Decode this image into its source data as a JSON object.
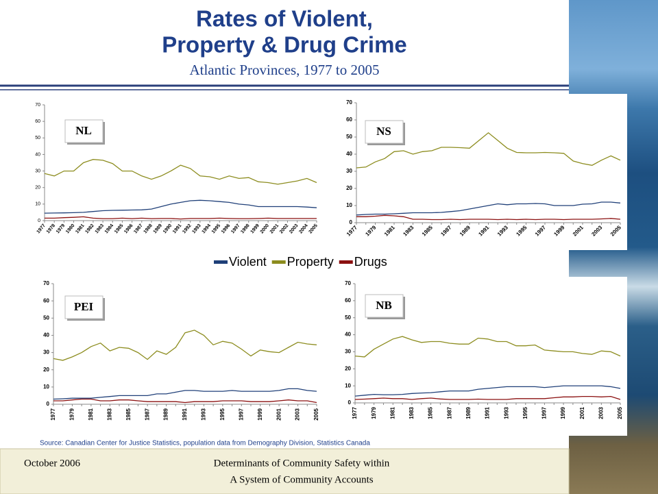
{
  "slide": {
    "title_lines": [
      "Rates of Violent,",
      "Property & Drug Crime"
    ],
    "subtitle": "Atlantic Provinces, 1977 to 2005",
    "source": "Source: Canadian Center for Justice Statistics, population data from Demography Division, Statistics Canada",
    "footer": {
      "date": "October 2006",
      "text_lines": [
        "Determinants of Community Safety within",
        "A System of Community Accounts"
      ]
    }
  },
  "chart_data": [
    {
      "type": "line",
      "title": "NL",
      "categories": [
        "1977",
        "1978",
        "1979",
        "1980",
        "1981",
        "1982",
        "1983",
        "1984",
        "1985",
        "1986",
        "1987",
        "1988",
        "1989",
        "1990",
        "1991",
        "1992",
        "1993",
        "1994",
        "1995",
        "1996",
        "1997",
        "1998",
        "1999",
        "2000",
        "2001",
        "2002",
        "2003",
        "2004",
        "2005"
      ],
      "series": [
        {
          "name": "Violent",
          "color": "#1f3f78",
          "values": [
            4.5,
            4.6,
            4.7,
            4.8,
            5,
            5.5,
            6,
            6.2,
            6.3,
            6.4,
            6.5,
            7,
            8.5,
            10,
            11,
            12,
            12.3,
            12,
            11.5,
            11,
            10,
            9.5,
            8.5,
            8.5,
            8.5,
            8.5,
            8.5,
            8.2,
            7.8
          ]
        },
        {
          "name": "Property",
          "color": "#8c8c1e",
          "values": [
            28.5,
            27,
            30,
            30,
            35,
            37,
            36.5,
            34.5,
            30,
            30,
            27,
            25,
            27,
            30,
            33.5,
            31.5,
            27,
            26.5,
            25,
            27,
            25.5,
            26,
            23.5,
            23,
            22,
            23,
            24,
            25.5,
            23
          ]
        },
        {
          "name": "Drugs",
          "color": "#8b1010",
          "values": [
            1.5,
            1.5,
            1.8,
            2,
            2.3,
            1.5,
            1.2,
            1.2,
            1.5,
            1.2,
            1.5,
            1.2,
            1.3,
            1.3,
            1,
            1.3,
            1.3,
            1.3,
            1.5,
            1.3,
            1.2,
            1.2,
            1.3,
            1.5,
            1.3,
            1.3,
            1.3,
            1.3,
            1.3
          ]
        }
      ],
      "ylim": [
        0,
        70
      ],
      "yticks": [
        0,
        10,
        20,
        30,
        40,
        50,
        60,
        70
      ]
    },
    {
      "type": "line",
      "title": "NS",
      "categories": [
        "1977",
        null,
        "1979",
        null,
        "1981",
        null,
        "1983",
        null,
        "1985",
        null,
        "1987",
        null,
        "1989",
        null,
        "1991",
        null,
        "1993",
        null,
        "1995",
        null,
        "1997",
        null,
        "1999",
        null,
        "2001",
        null,
        "2003",
        null,
        "2005"
      ],
      "series": [
        {
          "color": "#1f3f78",
          "values": [
            4.5,
            4.8,
            5,
            5,
            5.2,
            5.5,
            5.8,
            5.8,
            5.8,
            6,
            6.5,
            7,
            8,
            9,
            10,
            11,
            10.5,
            11,
            11,
            11.2,
            11,
            10,
            10,
            10,
            10.8,
            11,
            12,
            12,
            11.5
          ]
        },
        {
          "color": "#8c8c1e",
          "values": [
            32,
            32.5,
            35.5,
            37.5,
            41.5,
            42,
            40,
            41.5,
            42,
            44,
            44,
            43.8,
            43.5,
            48,
            52.5,
            48,
            43.5,
            41,
            40.8,
            40.8,
            41,
            40.8,
            40.5,
            36,
            34.5,
            33.5,
            36.5,
            39,
            36.5
          ]
        },
        {
          "color": "#8b1010",
          "values": [
            3.5,
            3.5,
            3.8,
            4.3,
            4,
            3.5,
            2,
            2,
            1.8,
            1.8,
            2,
            1.8,
            2,
            2,
            2,
            1.8,
            2,
            1.8,
            2,
            1.8,
            2,
            2,
            1.8,
            2,
            2,
            2,
            2.2,
            2.5,
            2
          ]
        }
      ],
      "ylim": [
        0,
        70
      ],
      "yticks": [
        0,
        10,
        20,
        30,
        40,
        50,
        60,
        70
      ]
    },
    {
      "type": "line",
      "title": "PEI",
      "categories": [
        "1977",
        null,
        "1979",
        null,
        "1981",
        null,
        "1983",
        null,
        "1985",
        null,
        "1987",
        null,
        "1989",
        null,
        "1991",
        null,
        "1993",
        null,
        "1995",
        null,
        "1997",
        null,
        "1999",
        null,
        "2001",
        null,
        "2003",
        null,
        "2005"
      ],
      "series": [
        {
          "color": "#1f3f78",
          "values": [
            3,
            3.2,
            3.5,
            3.5,
            3.5,
            4,
            4.5,
            5,
            5,
            5,
            5,
            6,
            6,
            7,
            8,
            8,
            7.5,
            7.5,
            7.5,
            8,
            7.5,
            7.5,
            7.5,
            7.5,
            8,
            9,
            9,
            8,
            7.5
          ]
        },
        {
          "color": "#8c8c1e",
          "values": [
            26.5,
            25.5,
            27.5,
            30,
            33.5,
            35.5,
            31,
            33,
            32.5,
            30,
            26,
            31,
            29,
            33,
            41.5,
            43,
            40,
            34.5,
            36.5,
            35.5,
            32,
            28,
            31.5,
            30.5,
            30,
            33,
            36,
            35,
            34.5
          ]
        },
        {
          "color": "#8b1010",
          "values": [
            2,
            2,
            2.5,
            3,
            3,
            2,
            2,
            2.5,
            2.5,
            2,
            1.5,
            1.5,
            1.5,
            1.5,
            1,
            1.5,
            1.5,
            1.5,
            2,
            2,
            2,
            1.5,
            1.5,
            1.5,
            2,
            2.5,
            2,
            2,
            1
          ]
        }
      ],
      "ylim": [
        0,
        70
      ],
      "yticks": [
        0,
        10,
        20,
        30,
        40,
        50,
        60,
        70
      ]
    },
    {
      "type": "line",
      "title": "NB",
      "categories": [
        "1977",
        null,
        "1979",
        null,
        "1981",
        null,
        "1983",
        null,
        "1985",
        null,
        "1987",
        null,
        "1989",
        null,
        "1991",
        null,
        "1993",
        null,
        "1995",
        null,
        "1997",
        null,
        "1999",
        null,
        "2001",
        null,
        "2003",
        null,
        "2005"
      ],
      "series": [
        {
          "color": "#1f3f78",
          "values": [
            4,
            4.5,
            5,
            4.8,
            4.8,
            5,
            5.5,
            5.8,
            6,
            6.5,
            7,
            7,
            7,
            8,
            8.5,
            9,
            9.5,
            9.5,
            9.5,
            9.5,
            9,
            9.5,
            10,
            10,
            10,
            10,
            10,
            9.5,
            8.5
          ]
        },
        {
          "color": "#8c8c1e",
          "values": [
            27.5,
            27,
            31.5,
            34.5,
            37.5,
            39,
            37,
            35.5,
            36,
            36,
            35,
            34.5,
            34.5,
            38,
            37.5,
            36,
            36,
            33.5,
            33.5,
            34,
            31,
            30.5,
            30,
            30,
            29,
            28.5,
            30.5,
            30,
            27.5
          ]
        },
        {
          "color": "#8b1010",
          "values": [
            2,
            2.2,
            2.5,
            2.8,
            2.5,
            2.5,
            2,
            2.5,
            2.8,
            2.3,
            2,
            2,
            2,
            2.2,
            2,
            2,
            2,
            2.5,
            2.5,
            2.5,
            2.5,
            3,
            3.5,
            3.5,
            3.8,
            3.8,
            3.5,
            3.8,
            2
          ]
        }
      ],
      "ylim": [
        0,
        70
      ],
      "yticks": [
        0,
        10,
        20,
        30,
        40,
        50,
        60,
        70
      ]
    }
  ]
}
